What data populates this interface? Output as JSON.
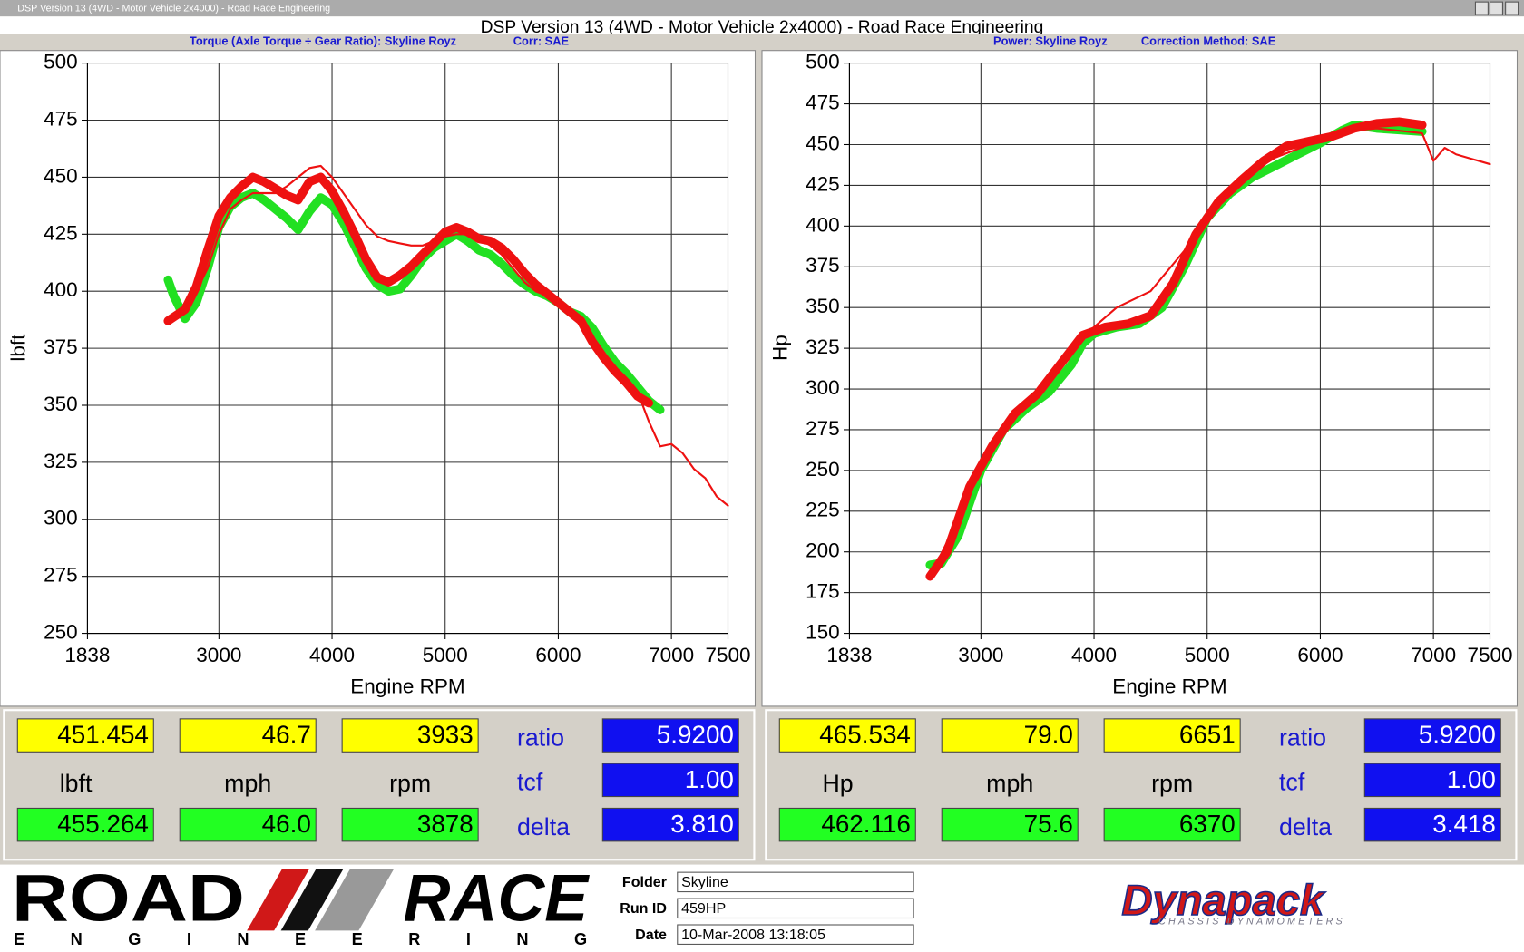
{
  "window": {
    "title": "DSP Version 13 (4WD - Motor Vehicle 2x4000) - Road Race Engineering"
  },
  "header": {
    "title": "DSP Version 13 (4WD - Motor Vehicle 2x4000) - Road Race Engineering"
  },
  "chart_data": [
    {
      "type": "line",
      "title": "Torque (Axle Torque ÷ Gear Ratio): Skyline Royz",
      "subtitle": "Corr: SAE",
      "x_label": "Engine RPM",
      "y_label": "lbft",
      "xlim": [
        1838,
        7500
      ],
      "xticks": [
        1838,
        3000,
        4000,
        5000,
        6000,
        7000,
        7500
      ],
      "ylim": [
        250,
        500
      ],
      "yticks": [
        250,
        275,
        300,
        325,
        350,
        375,
        400,
        425,
        450,
        475,
        500
      ],
      "grid": true,
      "series": [
        {
          "color": "#22e022",
          "line_width": 9,
          "x": [
            2550,
            2600,
            2700,
            2800,
            2900,
            3000,
            3100,
            3200,
            3300,
            3400,
            3500,
            3600,
            3700,
            3800,
            3900,
            4000,
            4100,
            4200,
            4300,
            4400,
            4500,
            4600,
            4700,
            4800,
            4900,
            5000,
            5100,
            5200,
            5300,
            5400,
            5500,
            5600,
            5700,
            5800,
            5900,
            6000,
            6100,
            6200,
            6300,
            6400,
            6500,
            6600,
            6700,
            6800,
            6900
          ],
          "values": [
            405,
            398,
            388,
            395,
            410,
            428,
            437,
            441,
            443,
            440,
            436,
            432,
            427,
            435,
            441,
            438,
            430,
            420,
            410,
            403,
            400,
            401,
            407,
            414,
            419,
            422,
            425,
            422,
            418,
            416,
            412,
            407,
            403,
            400,
            398,
            395,
            391,
            389,
            384,
            376,
            369,
            364,
            358,
            352,
            348
          ]
        },
        {
          "color": "#ee1111",
          "line_width": 9,
          "x": [
            2550,
            2700,
            2800,
            2900,
            3000,
            3100,
            3200,
            3300,
            3400,
            3500,
            3600,
            3700,
            3800,
            3900,
            4000,
            4100,
            4200,
            4300,
            4400,
            4500,
            4600,
            4700,
            4800,
            4900,
            5000,
            5100,
            5200,
            5300,
            5400,
            5500,
            5600,
            5700,
            5800,
            5900,
            6000,
            6100,
            6200,
            6300,
            6400,
            6500,
            6600,
            6700,
            6800
          ],
          "values": [
            387,
            392,
            402,
            418,
            433,
            441,
            446,
            450,
            448,
            445,
            442,
            440,
            448,
            450,
            444,
            435,
            425,
            414,
            406,
            404,
            407,
            411,
            416,
            421,
            426,
            428,
            426,
            423,
            422,
            419,
            414,
            408,
            403,
            399,
            395,
            391,
            387,
            378,
            371,
            365,
            360,
            354,
            351
          ]
        },
        {
          "color": "#ee1111",
          "line_width": 2,
          "x": [
            2550,
            2700,
            2800,
            2900,
            3000,
            3100,
            3200,
            3300,
            3400,
            3500,
            3600,
            3700,
            3800,
            3900,
            4000,
            4100,
            4200,
            4300,
            4400,
            4500,
            4600,
            4700,
            4800,
            4900,
            5000,
            5100,
            5200,
            5300,
            5400,
            5500,
            5600,
            5700,
            5800,
            5900,
            6000,
            6200,
            6300,
            6500,
            6700,
            6800,
            6900,
            7000,
            7100,
            7200,
            7300,
            7400,
            7500
          ],
          "values": [
            386,
            393,
            400,
            410,
            425,
            436,
            440,
            443,
            443,
            443,
            446,
            450,
            454,
            455,
            450,
            443,
            436,
            429,
            424,
            422,
            421,
            420,
            420,
            422,
            424,
            425,
            425,
            423,
            420,
            416,
            410,
            404,
            400,
            398,
            395,
            389,
            380,
            365,
            356,
            343,
            332,
            333,
            329,
            322,
            318,
            310,
            306
          ]
        }
      ]
    },
    {
      "type": "line",
      "title": "Power: Skyline Royz",
      "subtitle": "Correction Method: SAE",
      "x_label": "Engine RPM",
      "y_label": "Hp",
      "xlim": [
        1838,
        7500
      ],
      "xticks": [
        1838,
        3000,
        4000,
        5000,
        6000,
        7000,
        7500
      ],
      "ylim": [
        150,
        500
      ],
      "yticks": [
        150,
        175,
        200,
        225,
        250,
        275,
        300,
        325,
        350,
        375,
        400,
        425,
        450,
        475,
        500
      ],
      "grid": true,
      "series": [
        {
          "color": "#22e022",
          "line_width": 9,
          "x": [
            2550,
            2650,
            2800,
            3000,
            3200,
            3400,
            3600,
            3800,
            3900,
            4000,
            4200,
            4400,
            4600,
            4800,
            5000,
            5200,
            5400,
            5600,
            5800,
            6000,
            6200,
            6300,
            6500,
            6700,
            6900
          ],
          "values": [
            192,
            193,
            210,
            250,
            275,
            288,
            298,
            315,
            328,
            334,
            338,
            340,
            350,
            375,
            405,
            420,
            430,
            437,
            444,
            451,
            459,
            462,
            460,
            459,
            458
          ]
        },
        {
          "color": "#ee1111",
          "line_width": 9,
          "x": [
            2550,
            2700,
            2900,
            3100,
            3300,
            3500,
            3700,
            3900,
            4100,
            4300,
            4500,
            4700,
            4900,
            5100,
            5300,
            5500,
            5700,
            5900,
            6100,
            6300,
            6500,
            6700,
            6900
          ],
          "values": [
            185,
            200,
            240,
            265,
            285,
            297,
            315,
            333,
            338,
            340,
            345,
            365,
            395,
            415,
            428,
            440,
            449,
            452,
            455,
            460,
            463,
            464,
            462
          ]
        },
        {
          "color": "#ee1111",
          "line_width": 2,
          "x": [
            2550,
            2800,
            3000,
            3300,
            3600,
            3900,
            4200,
            4500,
            4800,
            5000,
            5300,
            5600,
            5900,
            6200,
            6500,
            6900,
            7000,
            7100,
            7200,
            7300,
            7400,
            7500
          ],
          "values": [
            185,
            220,
            253,
            285,
            306,
            332,
            350,
            360,
            385,
            405,
            430,
            442,
            450,
            458,
            460,
            457,
            440,
            448,
            444,
            442,
            440,
            438
          ]
        }
      ]
    }
  ],
  "readouts": [
    {
      "current": [
        "451.454",
        "46.7",
        "3933"
      ],
      "units": [
        "lbft",
        "mph",
        "rpm"
      ],
      "peak": [
        "455.264",
        "46.0",
        "3878"
      ],
      "labels": [
        "ratio",
        "tcf",
        "delta"
      ],
      "factors": [
        "5.9200",
        "1.00",
        "3.810"
      ]
    },
    {
      "current": [
        "465.534",
        "79.0",
        "6651"
      ],
      "units": [
        "Hp",
        "mph",
        "rpm"
      ],
      "peak": [
        "462.116",
        "75.6",
        "6370"
      ],
      "labels": [
        "ratio",
        "tcf",
        "delta"
      ],
      "factors": [
        "5.9200",
        "1.00",
        "3.418"
      ]
    }
  ],
  "footer": {
    "logo_left": [
      "ROAD",
      "RACE",
      "ENGINEERING"
    ],
    "fields": [
      {
        "label": "Folder",
        "value": "Skyline"
      },
      {
        "label": "Run ID",
        "value": "459HP"
      },
      {
        "label": "Date",
        "value": "10-Mar-2008  13:18:05"
      }
    ],
    "logo_right": [
      "Dynapack",
      "CHASSIS DYNAMOMETERS"
    ]
  }
}
